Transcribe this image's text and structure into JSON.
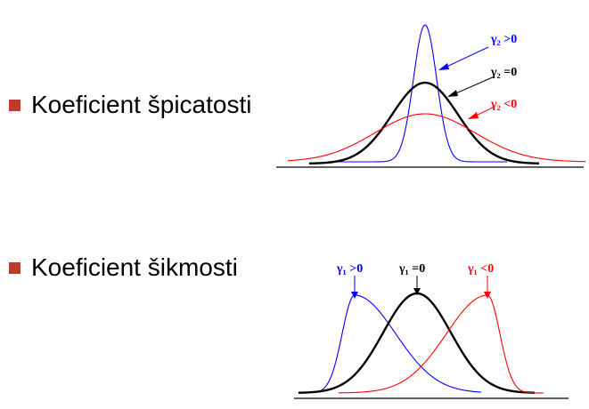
{
  "colors": {
    "bullet": "#c0392b",
    "blue": "#0000ff",
    "black": "#000000",
    "red": "#ff0000"
  },
  "sections": [
    {
      "label": "Koeficient špicatosti",
      "curve_labels": {
        "positive": "γ₂ >0",
        "zero": "γ₂ =0",
        "negative": "γ₂ <0"
      }
    },
    {
      "label": "Koeficient šikmosti",
      "curve_labels": {
        "positive": "γ₁ >0",
        "zero": "γ₁ =0",
        "negative": "γ₁ <0"
      }
    }
  ]
}
